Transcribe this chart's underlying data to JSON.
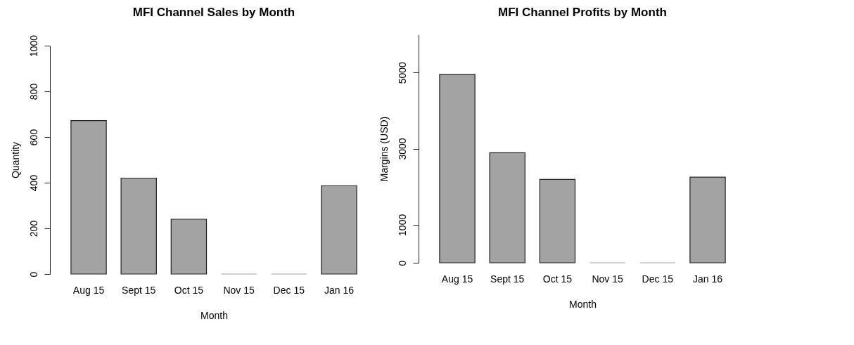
{
  "chart_data": [
    {
      "type": "bar",
      "title": "MFI Channel Sales by Month",
      "xlabel": "Month",
      "ylabel": "Quantity",
      "categories": [
        "Aug 15",
        "Sept 15",
        "Oct 15",
        "Nov 15",
        "Dec 15",
        "Jan 16"
      ],
      "values": [
        672,
        420,
        240,
        0,
        0,
        387
      ],
      "color": "#a3a3a3",
      "ylim": [
        0,
        1000
      ],
      "yticks": [
        0,
        200,
        400,
        600,
        800,
        1000
      ]
    },
    {
      "type": "bar",
      "title": "MFI Channel Profits by Month",
      "xlabel": "Month",
      "ylabel": "Margins (USD)",
      "categories": [
        "Aug 15",
        "Sept 15",
        "Oct 15",
        "Nov 15",
        "Dec 15",
        "Jan 16"
      ],
      "values": [
        4950,
        2890,
        2190,
        0,
        0,
        2250
      ],
      "color": "#a3a3a3",
      "ylim": [
        0,
        6000
      ],
      "yticks": [
        0,
        1000,
        3000,
        5000
      ]
    }
  ]
}
